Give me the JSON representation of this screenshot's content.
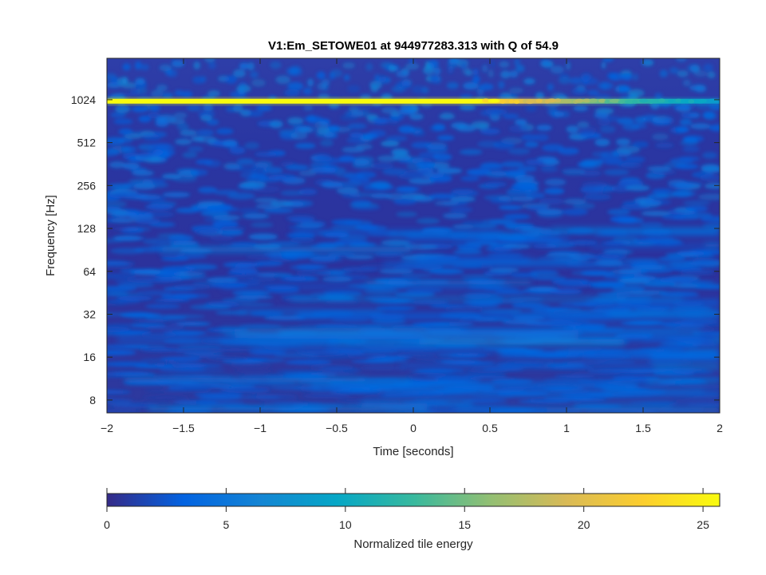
{
  "chart_data": {
    "type": "heatmap",
    "title": "V1:Em_SETOWE01 at 944977283.313 with Q of 54.9",
    "xlabel": "Time [seconds]",
    "ylabel": "Frequency [Hz]",
    "xlim": [
      -2,
      2
    ],
    "ylim": [
      6.5,
      2000
    ],
    "yscale": "log2",
    "x_ticks": [
      -2,
      -1.5,
      -1,
      -0.5,
      0,
      0.5,
      1,
      1.5,
      2
    ],
    "x_tick_labels": [
      "−2",
      "−1.5",
      "−1",
      "−0.5",
      "0",
      "0.5",
      "1",
      "1.5",
      "2"
    ],
    "y_ticks": [
      8,
      16,
      32,
      64,
      128,
      256,
      512,
      1024
    ],
    "y_tick_labels": [
      "8",
      "16",
      "32",
      "64",
      "128",
      "256",
      "512",
      "1024"
    ],
    "colorbar": {
      "label": "Normalized tile energy",
      "range": [
        0,
        25.7
      ],
      "ticks": [
        0,
        5,
        10,
        15,
        20,
        25
      ],
      "tick_labels": [
        "0",
        "5",
        "10",
        "15",
        "20",
        "25"
      ],
      "colormap": "parula",
      "colors": [
        "#352a87",
        "#0363e1",
        "#1485d4",
        "#06a7c6",
        "#38b99e",
        "#92bf73",
        "#d9ba56",
        "#fcce2e",
        "#f9fb0e"
      ]
    },
    "features": [
      {
        "name": "narrowband line",
        "frequency_hz": 1000,
        "time_start": -2,
        "time_end": 2,
        "peak_energy": 25.7,
        "fade_start": 0.4,
        "end_energy": 8
      },
      {
        "name": "background noise",
        "typical_energy": 3
      }
    ]
  }
}
